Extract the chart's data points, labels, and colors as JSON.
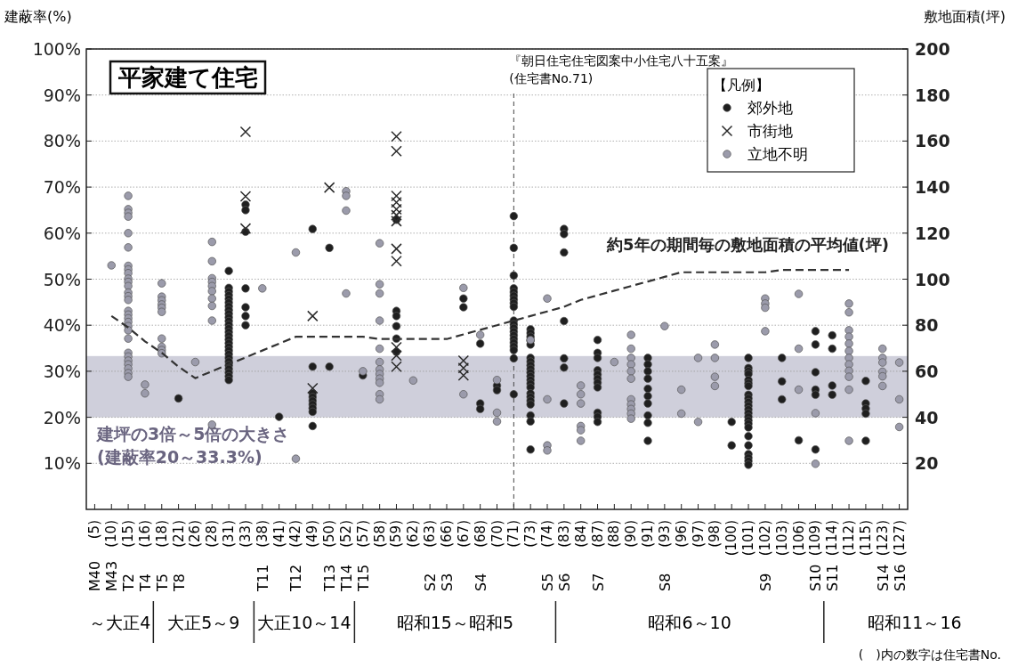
{
  "chart_data": {
    "type": "scatter",
    "title": "平家建て住宅",
    "ylabel": "建蔽率(%)",
    "y2label": "敷地面積(坪)",
    "legend_title": "【凡例】",
    "legend": "top right",
    "grid": "y",
    "categories": [
      "(5)",
      "(10)",
      "(15)",
      "(16)",
      "(18)",
      "(21)",
      "(26)",
      "(28)",
      "(31)",
      "(33)",
      "(38)",
      "(41)",
      "(42)",
      "(49)",
      "(50)",
      "(52)",
      "(57)",
      "(58)",
      "(59)",
      "(62)",
      "(63)",
      "(66)",
      "(67)",
      "(68)",
      "(70)",
      "(71)",
      "(73)",
      "(74)",
      "(83)",
      "(84)",
      "(87)",
      "(88)",
      "(90)",
      "(91)",
      "(93)",
      "(96)",
      "(97)",
      "(98)",
      "(100)",
      "(101)",
      "(102)",
      "(103)",
      "(106)",
      "(109)",
      "(114)",
      "(112)",
      "(115)",
      "(123)",
      "(127)"
    ],
    "ylim": [
      0,
      100
    ],
    "yticks": [
      {
        "value": 10,
        "label": "10%"
      },
      {
        "value": 20,
        "label": "20%"
      },
      {
        "value": 30,
        "label": "30%"
      },
      {
        "value": 40,
        "label": "40%"
      },
      {
        "value": 50,
        "label": "50%"
      },
      {
        "value": 60,
        "label": "60%"
      },
      {
        "value": 70,
        "label": "70%"
      },
      {
        "value": 80,
        "label": "80%"
      },
      {
        "value": 90,
        "label": "90%"
      },
      {
        "value": 100,
        "label": "100%"
      }
    ],
    "y2lim": [
      0,
      200
    ],
    "y2ticks": [
      20,
      40,
      60,
      80,
      100,
      120,
      140,
      160,
      180,
      200
    ],
    "series": [
      {
        "name": "郊外地",
        "marker": "circle",
        "color": "#1f1f1f",
        "x": [
          "(21)",
          "(31)",
          "(31)",
          "(31)",
          "(31)",
          "(31)",
          "(31)",
          "(31)",
          "(31)",
          "(31)",
          "(31)",
          "(31)",
          "(31)",
          "(31)",
          "(31)",
          "(31)",
          "(31)",
          "(31)",
          "(31)",
          "(31)",
          "(31)",
          "(31)",
          "(31)",
          "(31)",
          "(31)",
          "(31)",
          "(31)",
          "(31)",
          "(33)",
          "(33)",
          "(33)",
          "(33)",
          "(33)",
          "(33)",
          "(33)",
          "(41)",
          "(49)",
          "(49)",
          "(49)",
          "(49)",
          "(49)",
          "(49)",
          "(49)",
          "(49)",
          "(49)",
          "(50)",
          "(50)",
          "(57)",
          "(59)",
          "(59)",
          "(59)",
          "(59)",
          "(59)",
          "(59)",
          "(67)",
          "(67)",
          "(68)",
          "(68)",
          "(68)",
          "(70)",
          "(70)",
          "(71)",
          "(71)",
          "(71)",
          "(71)",
          "(71)",
          "(71)",
          "(71)",
          "(71)",
          "(71)",
          "(71)",
          "(71)",
          "(71)",
          "(71)",
          "(71)",
          "(71)",
          "(71)",
          "(71)",
          "(71)",
          "(71)",
          "(71)",
          "(73)",
          "(73)",
          "(73)",
          "(73)",
          "(73)",
          "(73)",
          "(73)",
          "(73)",
          "(73)",
          "(73)",
          "(73)",
          "(73)",
          "(73)",
          "(73)",
          "(73)",
          "(73)",
          "(73)",
          "(73)",
          "(73)",
          "(73)",
          "(73)",
          "(83)",
          "(83)",
          "(83)",
          "(83)",
          "(83)",
          "(83)",
          "(83)",
          "(87)",
          "(87)",
          "(87)",
          "(87)",
          "(87)",
          "(87)",
          "(87)",
          "(87)",
          "(87)",
          "(87)",
          "(87)",
          "(91)",
          "(91)",
          "(91)",
          "(91)",
          "(91)",
          "(91)",
          "(91)",
          "(91)",
          "(91)",
          "(91)",
          "(100)",
          "(100)",
          "(101)",
          "(101)",
          "(101)",
          "(101)",
          "(101)",
          "(101)",
          "(101)",
          "(101)",
          "(101)",
          "(101)",
          "(101)",
          "(101)",
          "(101)",
          "(101)",
          "(101)",
          "(101)",
          "(101)",
          "(101)",
          "(101)",
          "(101)",
          "(101)",
          "(101)",
          "(101)",
          "(103)",
          "(103)",
          "(103)",
          "(106)",
          "(109)",
          "(109)",
          "(109)",
          "(109)",
          "(109)",
          "(109)",
          "(114)",
          "(114)",
          "(114)",
          "(114)",
          "(115)",
          "(115)",
          "(115)",
          "(115)",
          "(115)"
        ],
        "values": [
          24.1,
          51.8,
          48.1,
          47.3,
          46.5,
          45.7,
          44.9,
          44.1,
          43.3,
          42.5,
          41.7,
          40.9,
          40.1,
          39.3,
          38.5,
          37.7,
          36.9,
          36.1,
          35.3,
          34.5,
          33.7,
          32.9,
          32.1,
          31.3,
          30.5,
          29.7,
          28.9,
          28.1,
          66.2,
          65,
          60.3,
          48,
          43.9,
          42,
          40,
          20.1,
          60.9,
          31,
          25.2,
          24.4,
          23.6,
          22.8,
          22,
          21.2,
          18.1,
          56.8,
          31,
          29.1,
          62.9,
          43.1,
          42,
          39.8,
          37.1,
          34.2,
          45.8,
          43.9,
          36,
          23,
          21.8,
          26.9,
          25.9,
          63.7,
          56.8,
          50.8,
          48,
          47.2,
          46.4,
          45.6,
          44.8,
          44,
          41,
          40.2,
          39.4,
          38.6,
          37.8,
          37,
          36.2,
          35.4,
          34.6,
          32.8,
          25,
          39.1,
          38.3,
          37.5,
          36.7,
          35.8,
          32.9,
          32.1,
          31.3,
          30.5,
          29.7,
          28.9,
          28.1,
          27.3,
          26.5,
          25.2,
          24.4,
          23.6,
          22.8,
          20.4,
          19.1,
          13,
          60.9,
          59.8,
          55.8,
          40.9,
          32.8,
          30.8,
          23,
          36.8,
          34,
          32.9,
          30.2,
          29.3,
          28.4,
          27.5,
          26.5,
          21,
          20.1,
          19,
          32.9,
          31.5,
          30,
          28.4,
          26.2,
          24.6,
          23,
          20.4,
          18.8,
          14.9,
          19,
          13.9,
          32.9,
          30.7,
          30,
          29.4,
          28.1,
          27.4,
          26.8,
          24.9,
          24.1,
          23.3,
          22.5,
          21.7,
          20.9,
          20.1,
          19.3,
          18.6,
          17.8,
          15.9,
          13.9,
          12,
          11.2,
          10.5,
          9.7,
          32.9,
          27.8,
          23.9,
          15,
          38.7,
          35.8,
          29.8,
          26,
          24.9,
          13,
          37.8,
          34.9,
          26.9,
          24.9,
          23,
          21.9,
          20.8,
          14.9,
          27.9
        ]
      },
      {
        "name": "市街地",
        "marker": "cross",
        "color": "#2a2a2a",
        "x": [
          "(33)",
          "(33)",
          "(33)",
          "(49)",
          "(49)",
          "(50)",
          "(59)",
          "(59)",
          "(59)",
          "(59)",
          "(59)",
          "(59)",
          "(59)",
          "(59)",
          "(59)",
          "(59)",
          "(59)",
          "(59)",
          "(67)",
          "(67)",
          "(67)"
        ],
        "values": [
          82,
          68,
          61,
          42,
          26.3,
          69.9,
          81,
          77.8,
          68.1,
          66.7,
          65.2,
          63.9,
          62.6,
          56.6,
          53.9,
          35.2,
          33.4,
          31,
          32.3,
          30.7,
          29.1
        ]
      },
      {
        "name": "立地不明",
        "marker": "circle",
        "color": "#9b9bab",
        "x": [
          "(10)",
          "(15)",
          "(15)",
          "(15)",
          "(15)",
          "(15)",
          "(15)",
          "(15)",
          "(15)",
          "(15)",
          "(15)",
          "(15)",
          "(15)",
          "(15)",
          "(15)",
          "(15)",
          "(15)",
          "(15)",
          "(15)",
          "(15)",
          "(15)",
          "(15)",
          "(15)",
          "(15)",
          "(15)",
          "(15)",
          "(15)",
          "(15)",
          "(15)",
          "(15)",
          "(16)",
          "(16)",
          "(18)",
          "(18)",
          "(18)",
          "(18)",
          "(18)",
          "(18)",
          "(18)",
          "(18)",
          "(18)",
          "(18)",
          "(26)",
          "(28)",
          "(28)",
          "(28)",
          "(28)",
          "(28)",
          "(28)",
          "(28)",
          "(28)",
          "(28)",
          "(28)",
          "(38)",
          "(42)",
          "(42)",
          "(52)",
          "(52)",
          "(52)",
          "(52)",
          "(57)",
          "(58)",
          "(58)",
          "(58)",
          "(58)",
          "(58)",
          "(58)",
          "(58)",
          "(58)",
          "(58)",
          "(58)",
          "(58)",
          "(58)",
          "(62)",
          "(67)",
          "(67)",
          "(68)",
          "(70)",
          "(70)",
          "(70)",
          "(73)",
          "(74)",
          "(74)",
          "(74)",
          "(74)",
          "(84)",
          "(84)",
          "(84)",
          "(84)",
          "(84)",
          "(84)",
          "(88)",
          "(90)",
          "(90)",
          "(90)",
          "(90)",
          "(90)",
          "(90)",
          "(90)",
          "(90)",
          "(90)",
          "(90)",
          "(90)",
          "(93)",
          "(96)",
          "(96)",
          "(97)",
          "(97)",
          "(98)",
          "(98)",
          "(98)",
          "(98)",
          "(102)",
          "(102)",
          "(102)",
          "(102)",
          "(106)",
          "(106)",
          "(106)",
          "(109)",
          "(109)",
          "(112)",
          "(112)",
          "(112)",
          "(112)",
          "(112)",
          "(112)",
          "(112)",
          "(112)",
          "(112)",
          "(112)",
          "(112)",
          "(112)",
          "(123)",
          "(123)",
          "(123)",
          "(123)",
          "(123)",
          "(123)",
          "(127)",
          "(127)",
          "(127)"
        ],
        "values": [
          53,
          68.1,
          65.2,
          64.4,
          63.6,
          60,
          56.9,
          52.9,
          52.1,
          51.3,
          50.1,
          49.4,
          48.5,
          47.1,
          46.3,
          45.5,
          43.1,
          42.3,
          41.5,
          40.7,
          39.8,
          38.9,
          37.1,
          34,
          33.2,
          32.3,
          31.5,
          30.6,
          29.6,
          28.8,
          27.1,
          25.2,
          49.1,
          46.2,
          45.4,
          44.5,
          43.8,
          42.9,
          37.1,
          35.3,
          34.6,
          33.9,
          32,
          58.1,
          53.9,
          50.2,
          49.4,
          48.5,
          47.4,
          45.8,
          44.2,
          41,
          18.4,
          48,
          55.8,
          11,
          69.1,
          68.1,
          64.9,
          46.9,
          30,
          57.8,
          48.9,
          46.9,
          41,
          34.9,
          32,
          30.4,
          29.4,
          28.4,
          27.5,
          25,
          23.9,
          28,
          48.1,
          25,
          37.9,
          28.1,
          21,
          19.1,
          36.8,
          45.8,
          23.9,
          13.9,
          12.8,
          26.9,
          25,
          23,
          18.1,
          17.2,
          14.9,
          32,
          37.9,
          34.9,
          32.9,
          31.5,
          30,
          28.4,
          23.9,
          22.8,
          21.8,
          20.8,
          19.7,
          39.8,
          26,
          20.8,
          32.9,
          19,
          35.8,
          32.9,
          28.8,
          26.8,
          45.8,
          44.7,
          43.8,
          38.7,
          46.8,
          34.9,
          26,
          20.9,
          9.9,
          44.7,
          42.8,
          38.9,
          37.5,
          36,
          34.4,
          32.9,
          31.5,
          30.1,
          28.8,
          26,
          14.9,
          34.9,
          32.9,
          31.9,
          29.9,
          28.9,
          26.8,
          31.9,
          23.9,
          17.9
        ]
      },
      {
        "name": "約5年の期間毎の敷地面積の平均値(坪)",
        "type": "line",
        "axis": "y2",
        "marker": "none",
        "line_style": "dashed",
        "color": "#333333",
        "values": [
          null,
          84,
          79,
          73,
          68,
          62,
          57,
          60,
          63,
          66,
          69,
          72,
          75,
          75,
          75,
          75,
          75,
          74,
          74,
          74,
          74,
          74,
          76,
          78,
          80,
          82,
          84,
          86,
          88,
          91,
          93,
          95,
          97,
          99,
          101,
          103,
          103,
          103,
          103,
          103,
          103,
          104,
          104,
          104,
          104,
          104,
          null,
          null,
          null
        ]
      }
    ],
    "bands": [
      {
        "axis": "y",
        "from": 20,
        "to": 33.3,
        "label": "建坪の3倍～5倍の大きさ",
        "color": "#cfcfdb"
      }
    ],
    "ref_lines": [
      {
        "axis": "x",
        "value": "(71)",
        "label": "『朝日住宅住宅図案中小住宅八十五案』",
        "line_style": "dashed"
      }
    ],
    "annotations": [
      "M40",
      "M43",
      "T2",
      "T4",
      "T5",
      "T8",
      "T11",
      "T12",
      "T13",
      "T14",
      "T15",
      "S2",
      "S3",
      "S4",
      "S5",
      "S6",
      "S7",
      "S8",
      "S9",
      "S10",
      "S11",
      "S14",
      "S16",
      "～大正4",
      "大正5～9",
      "大正10～14",
      "昭和15～昭和5",
      "昭和6～10",
      "昭和11～16",
      "(住宅書No.71)",
      "(建蔽率20～33.3%)",
      "(　)内の数字は住宅書No."
    ]
  }
}
